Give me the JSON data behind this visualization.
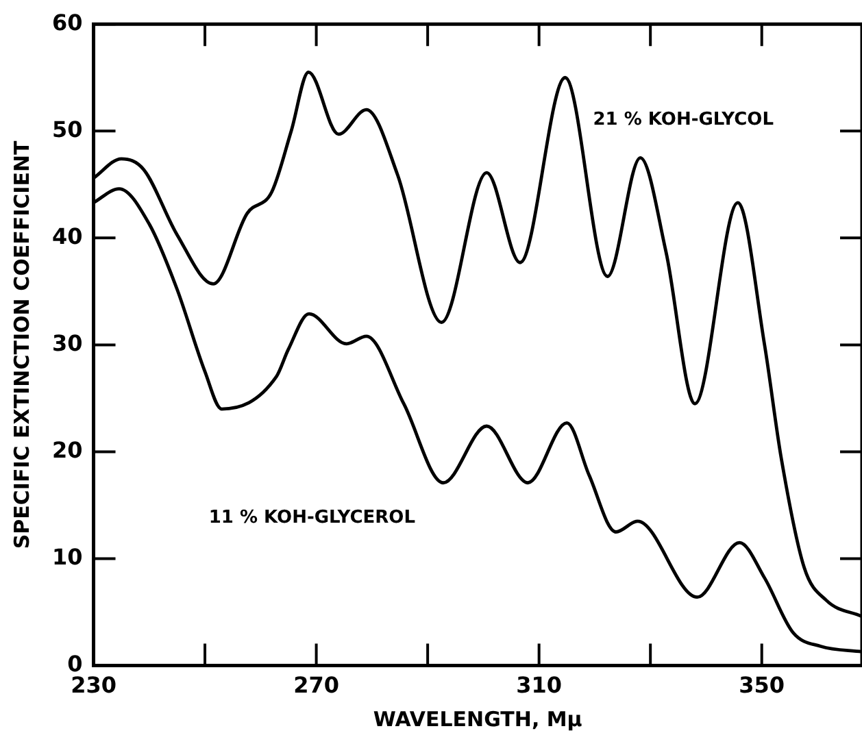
{
  "chart_data": {
    "type": "line",
    "xlabel": "WAVELENGTH, Mμ",
    "ylabel": "SPECIFIC EXTINCTION COEFFICIENT",
    "xlim": [
      230,
      368
    ],
    "ylim": [
      0,
      60
    ],
    "xticks": [
      230,
      {
        "value": 250,
        "label": null
      },
      270,
      {
        "value": 290,
        "label": null
      },
      310,
      {
        "value": 330,
        "label": null
      },
      350
    ],
    "yticks": [
      0,
      10,
      20,
      30,
      40,
      50,
      60
    ],
    "grid": false,
    "legend": false,
    "marker": "none",
    "line_style": "solid",
    "series": [
      {
        "name": "21 % KOH-GLYCOL",
        "color": "#000000",
        "x": [
          230,
          235,
          239,
          245,
          251.5,
          257.6,
          262,
          265.5,
          268.6,
          274,
          279,
          284.6,
          292.5,
          300.6,
          306.6,
          314.7,
          322.3,
          328.2,
          332.8,
          338,
          345.7,
          350.5,
          353.5,
          357.6,
          361.6,
          368
        ],
        "values": [
          45.6,
          47.4,
          46.4,
          40.3,
          35.7,
          42.3,
          44.3,
          50,
          55.5,
          49.7,
          52,
          45.9,
          32.1,
          46.1,
          37.7,
          55,
          36.4,
          47.5,
          38.7,
          24.5,
          43.3,
          30,
          19.4,
          9.2,
          6.1,
          4.6
        ]
      },
      {
        "name": "11 % KOH-GLYCEROL",
        "color": "#000000",
        "x": [
          230,
          234.6,
          240,
          245,
          250,
          253,
          262.8,
          265,
          268.7,
          275.4,
          279,
          285.7,
          292.8,
          300.6,
          308,
          315,
          319,
          323.8,
          327.7,
          338.4,
          346,
          350.5,
          355.6,
          360.6,
          368
        ],
        "values": [
          43.3,
          44.6,
          41.3,
          35.2,
          27.5,
          24,
          27,
          29.6,
          32.9,
          30.1,
          30.8,
          24.5,
          17.1,
          22.4,
          17.1,
          22.7,
          17.8,
          12.5,
          13.5,
          6.4,
          11.5,
          8.2,
          3.1,
          1.8,
          1.3
        ]
      }
    ]
  }
}
